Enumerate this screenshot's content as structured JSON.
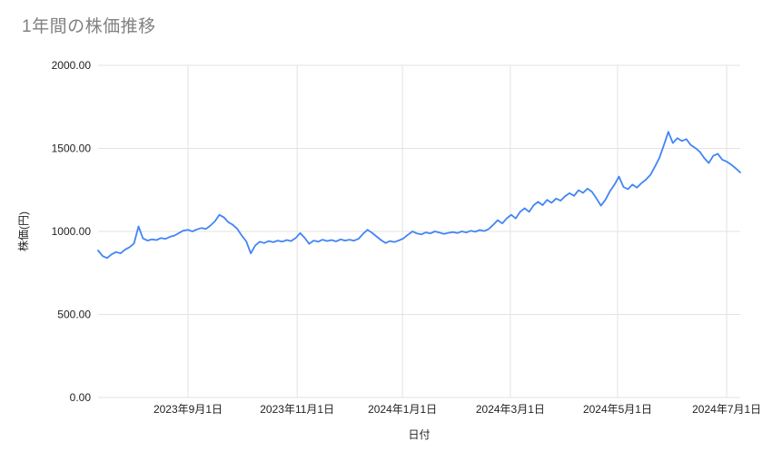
{
  "colors": {
    "line": "#4285f4",
    "grid": "#e3e3e3",
    "title": "#818181",
    "tick": "#222222",
    "axis_label": "#222222",
    "background": "#ffffff"
  },
  "chart_data": {
    "type": "line",
    "title": "1年間の株価推移",
    "xlabel": "日付",
    "ylabel": "株価(円)",
    "ylim": [
      0,
      2000
    ],
    "grid": true,
    "legend": "none",
    "y_ticks": [
      0,
      500,
      1000,
      1500,
      2000
    ],
    "y_tick_labels": [
      "0.00",
      "500.00",
      "1000.00",
      "1500.00",
      "2000.00"
    ],
    "x_ticks": [
      {
        "label": "2023年9月1日",
        "pos": 0.14
      },
      {
        "label": "2023年11月1日",
        "pos": 0.31
      },
      {
        "label": "2024年1月1日",
        "pos": 0.474
      },
      {
        "label": "2024年3月1日",
        "pos": 0.642
      },
      {
        "label": "2024年5月1日",
        "pos": 0.809
      },
      {
        "label": "2024年7月1日",
        "pos": 0.979
      }
    ],
    "series": [
      {
        "color": "#4285f4",
        "values": [
          885,
          852,
          840,
          862,
          876,
          868,
          890,
          905,
          928,
          1030,
          958,
          945,
          952,
          948,
          960,
          955,
          968,
          975,
          990,
          1005,
          1010,
          1000,
          1012,
          1020,
          1015,
          1035,
          1060,
          1100,
          1085,
          1055,
          1040,
          1015,
          975,
          940,
          868,
          915,
          938,
          930,
          942,
          935,
          945,
          938,
          948,
          942,
          960,
          990,
          962,
          925,
          945,
          938,
          950,
          942,
          948,
          940,
          952,
          945,
          950,
          944,
          956,
          985,
          1010,
          992,
          970,
          948,
          930,
          942,
          936,
          946,
          958,
          980,
          1000,
          988,
          982,
          994,
          988,
          1000,
          993,
          985,
          991,
          996,
          990,
          1000,
          994,
          1004,
          998,
          1008,
          1002,
          1014,
          1040,
          1068,
          1048,
          1078,
          1100,
          1078,
          1118,
          1140,
          1118,
          1158,
          1178,
          1158,
          1190,
          1172,
          1198,
          1185,
          1212,
          1230,
          1214,
          1248,
          1232,
          1258,
          1238,
          1198,
          1155,
          1192,
          1242,
          1282,
          1330,
          1268,
          1254,
          1282,
          1264,
          1290,
          1312,
          1340,
          1390,
          1442,
          1520,
          1600,
          1532,
          1562,
          1545,
          1556,
          1520,
          1502,
          1480,
          1442,
          1412,
          1455,
          1468,
          1432,
          1420,
          1402,
          1380,
          1355
        ]
      }
    ]
  }
}
